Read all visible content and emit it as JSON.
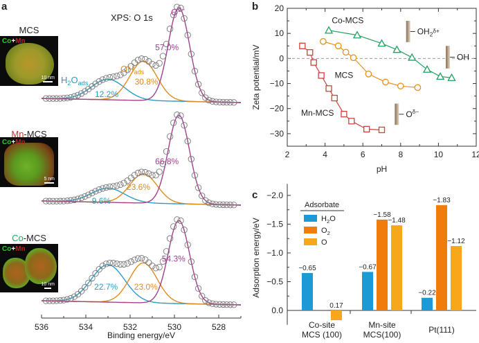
{
  "panel_labels": {
    "a": "a",
    "b": "b",
    "c": "c"
  },
  "colors": {
    "h2o": "#2a9bc9",
    "oh": "#e08a1e",
    "o2minus": "#a0408f",
    "co_mcs": "#1fa060",
    "mcs": "#e8901c",
    "mn_mcs": "#d0403c",
    "bar_h2o": "#1b9ad6",
    "bar_o2": "#f07d0a",
    "bar_o": "#f6a81a",
    "co_text": "#1fae5a",
    "mn_text": "#d12a2a"
  },
  "insets": [
    {
      "title_prefix": "",
      "title_main": "MCS",
      "co": "Co",
      "plus": "+",
      "mn": "Mn",
      "scale": "10 nm"
    },
    {
      "title_prefix": "Mn",
      "title_main": "-MCS",
      "co": "Co",
      "plus": "+",
      "mn": "Mn",
      "scale": "5 nm"
    },
    {
      "title_prefix": "Co",
      "title_main": "-MCS",
      "co": "Co",
      "plus": "+",
      "mn": "Mn",
      "scale": "10 nm"
    }
  ],
  "chart_data": [
    {
      "type": "line",
      "id": "a",
      "title": "XPS: O 1s",
      "xlabel": "Binding energy/eV",
      "xlim": [
        536,
        527
      ],
      "xticks": [
        536,
        534,
        532,
        530,
        528
      ],
      "components": [
        {
          "name": "H2O",
          "label_main": "H",
          "label_sub": "2",
          "label_rest": "O",
          "label_sub2": "ads",
          "center_eV": 533.0
        },
        {
          "name": "OH",
          "label_main": "OH",
          "label_sub2": "ads",
          "center_eV": 531.4
        },
        {
          "name": "O2-",
          "label_main": "O",
          "label_sup": "2−",
          "center_eV": 529.8
        }
      ],
      "spectra": [
        {
          "sample": "MCS",
          "percents": {
            "H2O": "12.2%",
            "OH": "30.8%",
            "O2-": "57.0%"
          },
          "amps": [
            0.22,
            0.42,
            1.0
          ]
        },
        {
          "sample": "Mn-MCS",
          "percents": {
            "H2O": "9.6%",
            "OH": "23.6%",
            "O2-": "66.8%"
          },
          "amps": [
            0.16,
            0.33,
            1.0
          ]
        },
        {
          "sample": "Co-MCS",
          "percents": {
            "H2O": "22.7%",
            "OH": "23.0%",
            "O2-": "54.3%"
          },
          "amps": [
            0.45,
            0.48,
            1.0
          ]
        }
      ]
    },
    {
      "type": "line",
      "id": "b",
      "xlabel": "pH",
      "ylabel": "Zeta potential/mV",
      "xlim": [
        2,
        12
      ],
      "ylim": [
        -35,
        20
      ],
      "xticks": [
        2,
        4,
        6,
        8,
        10,
        12
      ],
      "yticks": [
        20,
        10,
        0,
        -10,
        -20,
        -30
      ],
      "series": [
        {
          "name": "Co-MCS",
          "marker": "triangle",
          "x": [
            4.2,
            5.7,
            7.0,
            7.8,
            8.6,
            9.4,
            10.1,
            10.7
          ],
          "y": [
            11.2,
            9.3,
            6.0,
            3.5,
            0.4,
            -4.4,
            -7.2,
            -7.7
          ]
        },
        {
          "name": "MCS",
          "marker": "circle",
          "x": [
            3.9,
            4.7,
            5.1,
            5.5,
            6.3,
            7.2,
            8.0,
            8.9
          ],
          "y": [
            6.8,
            5.0,
            2.5,
            0.3,
            -6.2,
            -9.4,
            -11.0,
            -11.6
          ]
        },
        {
          "name": "Mn-MCS",
          "marker": "square",
          "x": [
            2.8,
            3.2,
            3.4,
            3.8,
            4.2,
            4.5,
            5.0,
            5.4,
            6.2,
            7.0
          ],
          "y": [
            5.0,
            2.4,
            -1.6,
            -6.8,
            -12.0,
            -15.8,
            -22.2,
            -25.0,
            -28.2,
            -28.5
          ]
        }
      ],
      "reference_line_y": 0,
      "annotations": [
        {
          "text": "OH",
          "sub": "2",
          "sup": "δ+"
        },
        {
          "text": "OH",
          "sub": "",
          "sup": ""
        },
        {
          "text": "O",
          "sub": "",
          "sup": "δ−"
        }
      ]
    },
    {
      "type": "bar",
      "id": "c",
      "ylabel": "Adsorption energy/eV",
      "ylim": [
        0.25,
        -2.2
      ],
      "yticks": [
        "-2.0",
        "-1.5",
        "-1.0",
        "-0.5",
        "0.0"
      ],
      "ytick_values": [
        -2.0,
        -1.5,
        -1.0,
        -0.5,
        0.0
      ],
      "categories": [
        [
          "Co-site",
          "MCS (100)"
        ],
        [
          "Mn-site",
          "MCS(100)"
        ],
        [
          "Pt(111)"
        ]
      ],
      "legend_title": "Adsorbate",
      "series": [
        {
          "name": "H2O",
          "label_main": "H",
          "label_sub": "2",
          "label_rest": "O",
          "values": [
            -0.65,
            -0.67,
            -0.22
          ],
          "labels": [
            "−0.65",
            "−0.67",
            "−0.22"
          ]
        },
        {
          "name": "O2",
          "label_main": "O",
          "label_sub": "2",
          "label_rest": "",
          "values": [
            null,
            -1.58,
            -1.83
          ],
          "labels": [
            null,
            "−1.58",
            "−1.83"
          ]
        },
        {
          "name": "O",
          "label_main": "O",
          "label_sub": "",
          "label_rest": "",
          "values": [
            0.17,
            -1.48,
            -1.12
          ],
          "labels": [
            "0.17",
            "−1.48",
            "−1.12"
          ]
        }
      ]
    }
  ]
}
